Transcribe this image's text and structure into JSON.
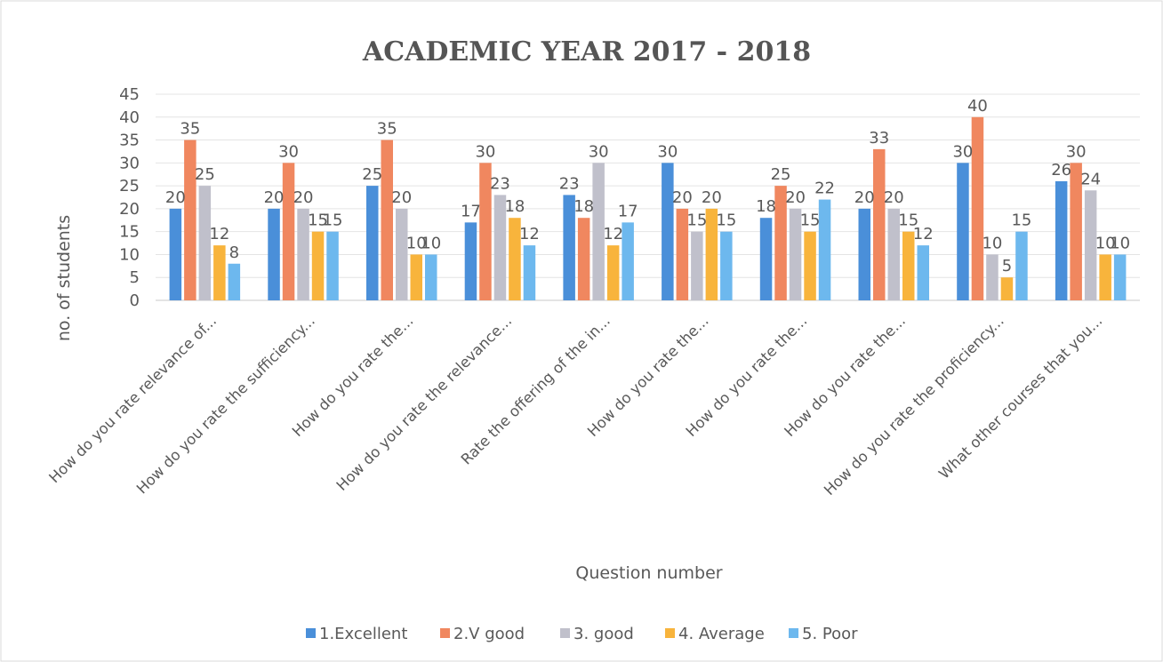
{
  "chart_data": {
    "type": "bar",
    "title": "ACADEMIC YEAR 2017 - 2018",
    "xlabel": "Question number",
    "ylabel": "no. of students",
    "ylim": [
      0,
      45
    ],
    "yticks": [
      0,
      5,
      10,
      15,
      20,
      25,
      30,
      35,
      40,
      45
    ],
    "grid": true,
    "legend_position": "bottom",
    "categories": [
      "How do you rate relevance of...",
      "How do you rate the sufficiency...",
      "How do you rate the...",
      "How do you rate the relevance...",
      "Rate the offering of the in...",
      "How do you rate the...",
      "How do you rate the...",
      "How do you rate the...",
      "How do you rate the proficiency...",
      "What other courses that you..."
    ],
    "series": [
      {
        "name": "1.Excellent",
        "color": "#4a8fd9",
        "values": [
          20,
          20,
          25,
          17,
          23,
          30,
          18,
          20,
          30,
          26
        ]
      },
      {
        "name": "2.V good",
        "color": "#f0875f",
        "values": [
          35,
          30,
          35,
          30,
          18,
          20,
          25,
          33,
          40,
          30
        ]
      },
      {
        "name": "3. good",
        "color": "#c0c0cb",
        "values": [
          25,
          20,
          20,
          23,
          30,
          15,
          20,
          20,
          10,
          24
        ]
      },
      {
        "name": "4. Average",
        "color": "#f8b43c",
        "values": [
          12,
          15,
          10,
          18,
          12,
          20,
          15,
          15,
          5,
          10
        ]
      },
      {
        "name": "5. Poor",
        "color": "#6db8ee",
        "values": [
          8,
          15,
          10,
          12,
          17,
          15,
          22,
          12,
          15,
          10
        ]
      }
    ]
  }
}
